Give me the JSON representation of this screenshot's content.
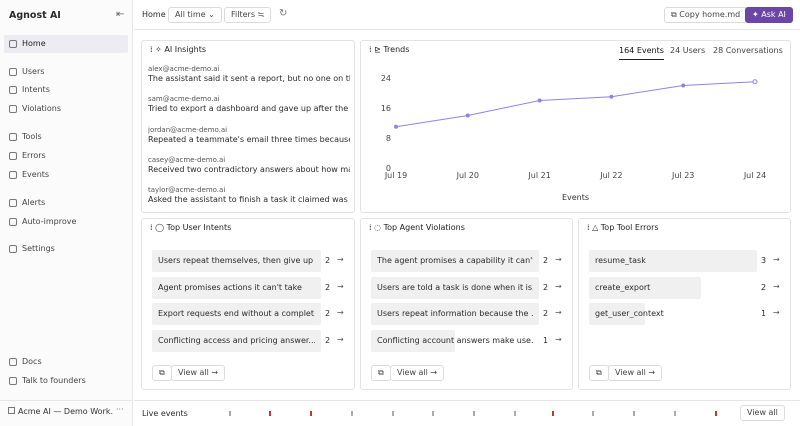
{
  "sidebar": {
    "brand": "Agnost AI",
    "nav": [
      "Home",
      "Users",
      "Intents",
      "Violations",
      "Tools",
      "Errors",
      "Events",
      "Alerts",
      "Auto-improve",
      "Settings"
    ],
    "footer_links": [
      "Docs",
      "Talk to founders"
    ],
    "workspace": "Acme AI — Demo Work..."
  },
  "topbar": {
    "breadcrumb": "Home",
    "time_filter": "All time",
    "filters": "Filters",
    "copy": "Copy home.md",
    "ask": "Ask AI"
  },
  "insights": {
    "title": "AI Insights",
    "items": [
      {
        "user": "alex@acme-demo.ai",
        "text": "The assistant said it sent a report, but no one on the..."
      },
      {
        "user": "sam@acme-demo.ai",
        "text": "Tried to export a dashboard and gave up after the pr..."
      },
      {
        "user": "jordan@acme-demo.ai",
        "text": "Repeated a teammate's email three times because t..."
      },
      {
        "user": "casey@acme-demo.ai",
        "text": "Received two contradictory answers about how ma..."
      },
      {
        "user": "taylor@acme-demo.ai",
        "text": "Asked the assistant to finish a task it claimed was a..."
      }
    ]
  },
  "chart_data": {
    "type": "line",
    "title": "Trends",
    "tabs": [
      "164 Events",
      "24 Users",
      "28 Conversations"
    ],
    "categories": [
      "Jul 19",
      "Jul 20",
      "Jul 21",
      "Jul 22",
      "Jul 23",
      "Jul 24"
    ],
    "values": [
      11,
      14,
      18,
      19,
      22,
      23
    ],
    "color": "#8b84e8",
    "ylim": [
      0,
      24
    ],
    "yticks": [
      0,
      8,
      16,
      24
    ],
    "x_label": "Events"
  },
  "panels": [
    {
      "title": "Top User Intents",
      "items": [
        {
          "label": "Users repeat themselves, then give up",
          "count": 2
        },
        {
          "label": "Agent promises actions it can't take",
          "count": 2
        },
        {
          "label": "Export requests end without a complet...",
          "count": 2
        },
        {
          "label": "Conflicting access and pricing answer...",
          "count": 2
        }
      ],
      "view_all": "View all"
    },
    {
      "title": "Top Agent Violations",
      "items": [
        {
          "label": "The agent promises a capability it can't...",
          "count": 2
        },
        {
          "label": "Users are told a task is done when it is...",
          "count": 2
        },
        {
          "label": "Users repeat information because the ...",
          "count": 2
        },
        {
          "label": "Conflicting account answers make use...",
          "count": 1
        }
      ],
      "view_all": "View all"
    },
    {
      "title": "Top Tool Errors",
      "items": [
        {
          "label": "resume_task",
          "count": 3
        },
        {
          "label": "create_export",
          "count": 2
        },
        {
          "label": "get_user_context",
          "count": 1
        }
      ],
      "view_all": "View all"
    }
  ],
  "live_events": {
    "label": "Live events",
    "view_all": "View all"
  }
}
